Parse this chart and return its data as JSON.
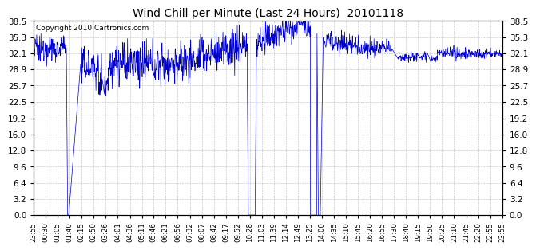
{
  "title": "Wind Chill per Minute (Last 24 Hours)  20101118",
  "copyright_text": "Copyright 2010 Cartronics.com",
  "line_color": "#0000cc",
  "background_color": "#ffffff",
  "plot_bg_color": "#ffffff",
  "grid_color": "#bbbbbb",
  "yticks": [
    0.0,
    3.2,
    6.4,
    9.6,
    12.8,
    16.0,
    19.2,
    22.5,
    25.7,
    28.9,
    32.1,
    35.3,
    38.5
  ],
  "ylim": [
    0.0,
    38.5
  ],
  "xtick_labels": [
    "23:55",
    "00:30",
    "01:05",
    "01:40",
    "02:15",
    "02:50",
    "03:26",
    "04:01",
    "04:36",
    "05:11",
    "05:46",
    "06:21",
    "06:56",
    "07:32",
    "08:07",
    "08:42",
    "09:17",
    "09:52",
    "10:28",
    "11:03",
    "11:39",
    "12:14",
    "12:49",
    "13:25",
    "14:00",
    "14:35",
    "15:10",
    "15:45",
    "16:20",
    "16:55",
    "17:30",
    "18:40",
    "19:15",
    "19:50",
    "20:25",
    "21:10",
    "21:45",
    "22:20",
    "22:55",
    "23:55"
  ],
  "num_points": 1440
}
